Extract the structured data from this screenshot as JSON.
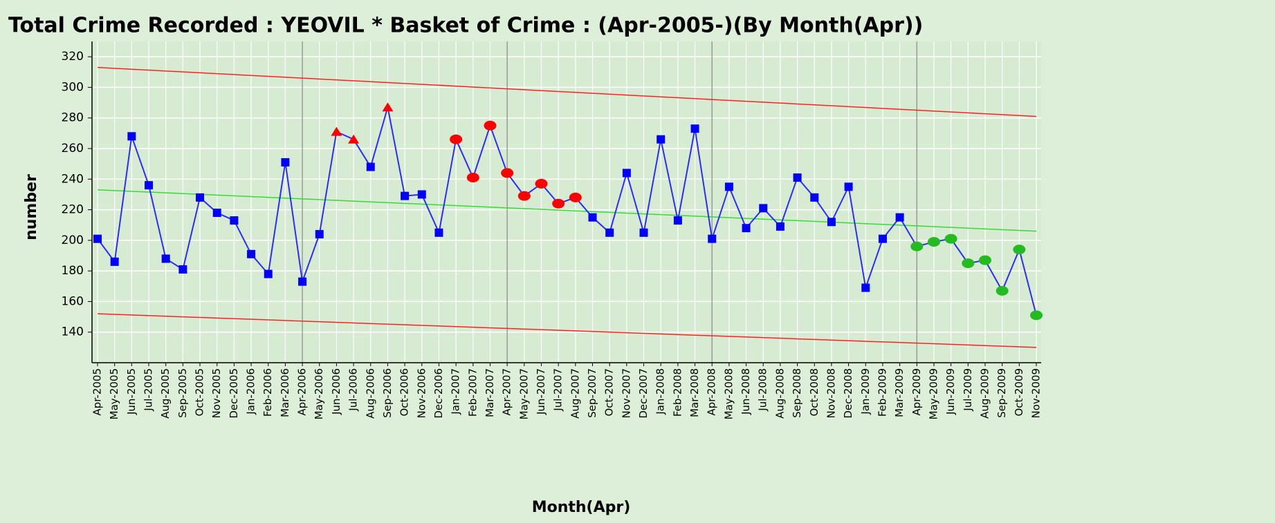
{
  "chart_data": {
    "type": "line",
    "title": "Total Crime Recorded : YEOVIL * Basket of Crime : (Apr-2005-)(By Month(Apr))",
    "x_label": "Month(Apr)",
    "y_label": "number",
    "categories": [
      "Apr-2005",
      "May-2005",
      "Jun-2005",
      "Jul-2005",
      "Aug-2005",
      "Sep-2005",
      "Oct-2005",
      "Nov-2005",
      "Dec-2005",
      "Jan-2006",
      "Feb-2006",
      "Mar-2006",
      "Apr-2006",
      "May-2006",
      "Jun-2006",
      "Jul-2006",
      "Aug-2006",
      "Sep-2006",
      "Oct-2006",
      "Nov-2006",
      "Dec-2006",
      "Jan-2007",
      "Feb-2007",
      "Mar-2007",
      "Apr-2007",
      "May-2007",
      "Jun-2007",
      "Jul-2007",
      "Aug-2007",
      "Sep-2007",
      "Oct-2007",
      "Nov-2007",
      "Dec-2007",
      "Jan-2008",
      "Feb-2008",
      "Mar-2008",
      "Apr-2008",
      "May-2008",
      "Jun-2008",
      "Jul-2008",
      "Aug-2008",
      "Sep-2008",
      "Oct-2008",
      "Nov-2008",
      "Dec-2008",
      "Jan-2009",
      "Feb-2009",
      "Mar-2009",
      "Apr-2009",
      "May-2009",
      "Jun-2009",
      "Jul-2009",
      "Aug-2009",
      "Sep-2009",
      "Oct-2009",
      "Nov-2009"
    ],
    "values": [
      201,
      186,
      268,
      236,
      188,
      181,
      228,
      218,
      213,
      191,
      178,
      251,
      173,
      204,
      271,
      266,
      248,
      287,
      229,
      230,
      205,
      266,
      241,
      275,
      244,
      229,
      237,
      224,
      228,
      215,
      205,
      244,
      205,
      266,
      213,
      273,
      201,
      235,
      208,
      221,
      209,
      241,
      228,
      212,
      235,
      169,
      201,
      215,
      196,
      199,
      201,
      185,
      187,
      167,
      194,
      151
    ],
    "color": "#2b2bff",
    "marker_shapes": [
      "square",
      "square",
      "square",
      "square",
      "square",
      "square",
      "square",
      "square",
      "square",
      "square",
      "square",
      "square",
      "square",
      "square",
      "triangle",
      "triangle",
      "square",
      "triangle",
      "square",
      "square",
      "square",
      "circle",
      "circle",
      "circle",
      "circle",
      "circle",
      "circle",
      "circle",
      "circle",
      "square",
      "square",
      "square",
      "square",
      "square",
      "square",
      "square",
      "square",
      "square",
      "square",
      "square",
      "square",
      "square",
      "square",
      "square",
      "square",
      "square",
      "square",
      "square",
      "circle",
      "circle",
      "circle",
      "circle",
      "circle",
      "circle",
      "circle",
      "circle"
    ],
    "marker_colors": [
      "#0000ff",
      "#0000ff",
      "#0000ff",
      "#0000ff",
      "#0000ff",
      "#0000ff",
      "#0000ff",
      "#0000ff",
      "#0000ff",
      "#0000ff",
      "#0000ff",
      "#0000ff",
      "#0000ff",
      "#0000ff",
      "#ff0000",
      "#ff0000",
      "#0000ff",
      "#ff0000",
      "#0000ff",
      "#0000ff",
      "#0000ff",
      "#ff0000",
      "#ff0000",
      "#ff0000",
      "#ff0000",
      "#ff0000",
      "#ff0000",
      "#ff0000",
      "#ff0000",
      "#0000ff",
      "#0000ff",
      "#0000ff",
      "#0000ff",
      "#0000ff",
      "#0000ff",
      "#0000ff",
      "#0000ff",
      "#0000ff",
      "#0000ff",
      "#0000ff",
      "#0000ff",
      "#0000ff",
      "#0000ff",
      "#0000ff",
      "#0000ff",
      "#0000ff",
      "#0000ff",
      "#0000ff",
      "#22bb22",
      "#22bb22",
      "#22bb22",
      "#22bb22",
      "#22bb22",
      "#22bb22",
      "#22bb22",
      "#22bb22"
    ],
    "reference_lines": [
      {
        "color": "#ff2020",
        "values": [
          313,
          281
        ]
      },
      {
        "color": "#33dd33",
        "values": [
          233,
          206
        ]
      },
      {
        "color": "#ff2020",
        "values": [
          152,
          130
        ]
      }
    ],
    "divider_indices": [
      12,
      24,
      36,
      48
    ],
    "ylim": [
      120,
      330
    ],
    "yticks": [
      140,
      160,
      180,
      200,
      220,
      240,
      260,
      280,
      300,
      320
    ],
    "grid": true
  }
}
